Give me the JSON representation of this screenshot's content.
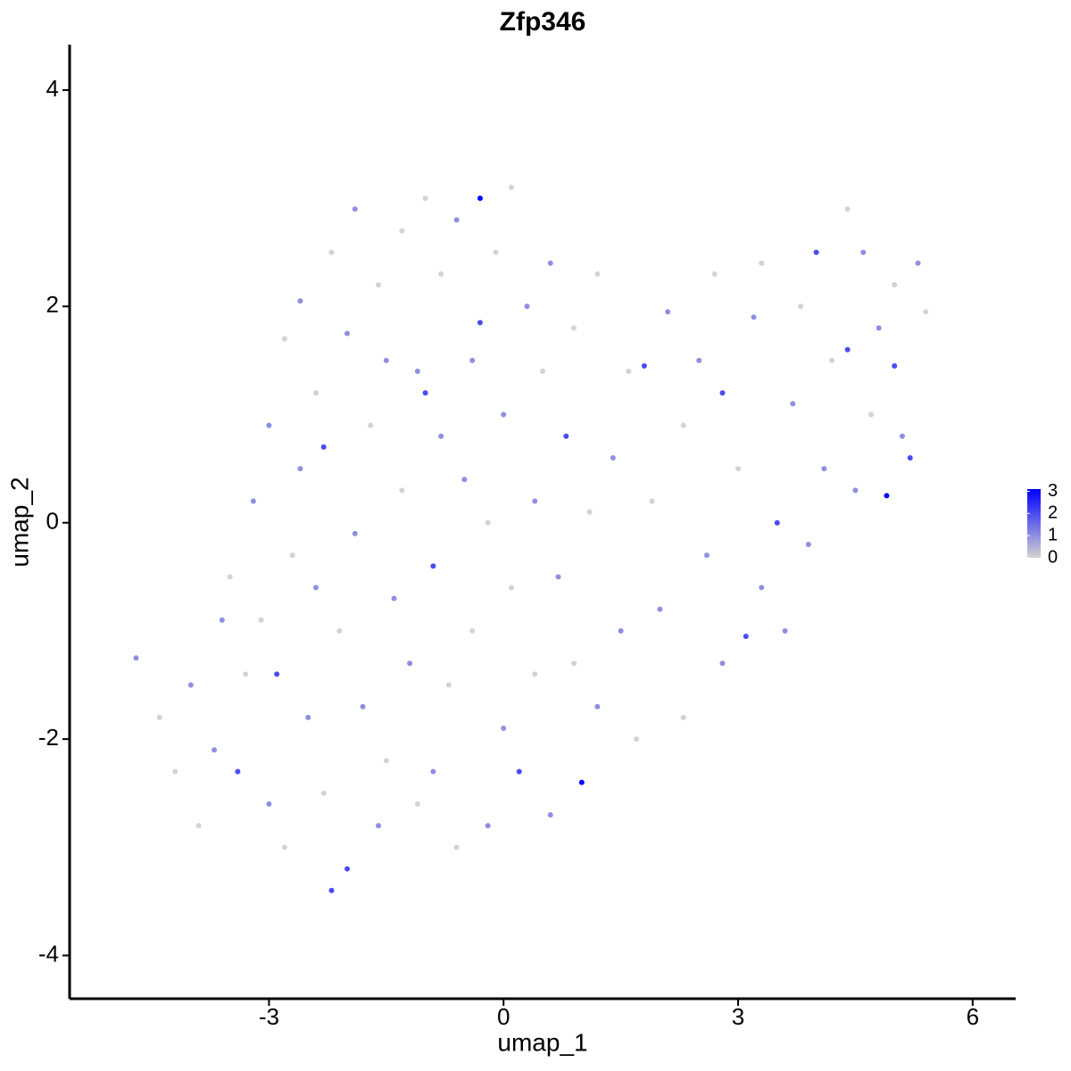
{
  "chart_data": {
    "type": "scatter",
    "title": "Zfp346",
    "x_label": "umap_1",
    "y_label": "umap_2",
    "xlim": [
      -5.55,
      6.55
    ],
    "ylim": [
      -4.4,
      4.42
    ],
    "xticks": [
      -3,
      0,
      3,
      6
    ],
    "yticks": [
      -4,
      -2,
      0,
      2,
      4
    ],
    "color_low": "#d3d3d3",
    "color_high": "#0000ff",
    "colorbar_lim": [
      0,
      3.1
    ],
    "colorbar_ticks": [
      0,
      1,
      2,
      3
    ],
    "x": [
      -4.7,
      -4.4,
      -4.2,
      -4.0,
      -3.9,
      -3.7,
      -3.6,
      -3.5,
      -3.4,
      -3.3,
      -3.2,
      -3.1,
      -3.0,
      -3.0,
      -2.9,
      -2.8,
      -2.8,
      -2.7,
      -2.6,
      -2.6,
      -2.5,
      -2.4,
      -2.4,
      -2.3,
      -2.3,
      -2.2,
      -2.2,
      -2.1,
      -2.0,
      -2.0,
      -1.9,
      -1.9,
      -1.8,
      -1.7,
      -1.6,
      -1.6,
      -1.5,
      -1.5,
      -1.4,
      -1.3,
      -1.3,
      -1.2,
      -1.1,
      -1.1,
      -1.0,
      -1.0,
      -0.9,
      -0.9,
      -0.8,
      -0.8,
      -0.7,
      -0.6,
      -0.6,
      -0.5,
      -0.4,
      -0.4,
      -0.3,
      -0.3,
      -0.2,
      -0.2,
      -0.1,
      0.0,
      0.0,
      0.1,
      0.1,
      0.2,
      0.3,
      0.4,
      0.4,
      0.5,
      0.6,
      0.6,
      0.7,
      0.8,
      0.9,
      0.9,
      1.0,
      1.1,
      1.2,
      1.2,
      1.4,
      1.5,
      1.6,
      1.7,
      1.8,
      1.9,
      2.0,
      2.1,
      2.3,
      2.3,
      2.5,
      2.6,
      2.7,
      2.8,
      2.8,
      3.0,
      3.1,
      3.2,
      3.3,
      3.3,
      3.5,
      3.6,
      3.7,
      3.8,
      3.9,
      4.0,
      4.1,
      4.2,
      4.4,
      4.4,
      4.5,
      4.6,
      4.7,
      4.8,
      4.9,
      5.0,
      5.0,
      5.1,
      5.2,
      5.3,
      5.4
    ],
    "y": [
      -1.25,
      -1.8,
      -2.3,
      -1.5,
      -2.8,
      -2.1,
      -0.9,
      -0.5,
      -2.3,
      -1.4,
      0.2,
      -0.9,
      0.9,
      -2.6,
      -1.4,
      1.7,
      -3.0,
      -0.3,
      0.5,
      2.05,
      -1.8,
      1.2,
      -0.6,
      0.7,
      -2.5,
      2.5,
      -3.4,
      -1.0,
      1.75,
      -3.2,
      2.9,
      -0.1,
      -1.7,
      0.9,
      2.2,
      -2.8,
      1.5,
      -2.2,
      -0.7,
      2.7,
      0.3,
      -1.3,
      1.4,
      -2.6,
      3.0,
      1.2,
      -0.4,
      -2.3,
      2.3,
      0.8,
      -1.5,
      2.8,
      -3.0,
      0.4,
      1.5,
      -1.0,
      3.0,
      1.85,
      -2.8,
      0.0,
      2.5,
      -1.9,
      1.0,
      3.1,
      -0.6,
      -2.3,
      2.0,
      0.2,
      -1.4,
      1.4,
      2.4,
      -2.7,
      -0.5,
      0.8,
      -1.3,
      1.8,
      -2.4,
      0.1,
      2.3,
      -1.7,
      0.6,
      -1.0,
      1.4,
      -2.0,
      1.45,
      0.2,
      -0.8,
      1.95,
      0.9,
      -1.8,
      1.5,
      -0.3,
      2.3,
      -1.3,
      1.2,
      0.5,
      -1.05,
      1.9,
      -0.6,
      2.4,
      0.0,
      -1.0,
      1.1,
      2.0,
      -0.2,
      2.5,
      0.5,
      1.5,
      1.6,
      2.9,
      0.3,
      2.5,
      1.0,
      1.8,
      0.25,
      1.45,
      2.2,
      0.8,
      0.6,
      2.4,
      1.95
    ],
    "values": [
      1,
      0,
      0,
      1,
      0,
      1,
      1,
      0,
      2,
      0,
      1,
      0,
      1,
      1,
      2,
      0,
      0,
      0,
      1,
      1,
      1,
      0,
      1,
      2,
      0,
      0,
      2,
      0,
      1,
      2,
      1,
      1,
      1,
      0,
      0,
      1,
      1,
      0,
      1,
      0,
      0,
      1,
      1,
      0,
      0,
      2,
      2,
      1,
      0,
      1,
      0,
      1,
      0,
      1,
      1,
      0,
      3,
      2,
      1,
      0,
      0,
      1,
      1,
      0,
      0,
      2,
      1,
      1,
      0,
      0,
      1,
      1,
      1,
      2,
      0,
      0,
      3,
      0,
      0,
      1,
      1,
      1,
      0,
      0,
      2,
      0,
      1,
      1,
      0,
      0,
      1,
      1,
      0,
      1,
      2,
      0,
      2,
      1,
      1,
      0,
      2,
      1,
      1,
      0,
      1,
      2,
      1,
      0,
      2,
      0,
      1,
      1,
      0,
      1,
      3,
      2,
      0,
      1,
      2,
      1,
      0
    ]
  }
}
